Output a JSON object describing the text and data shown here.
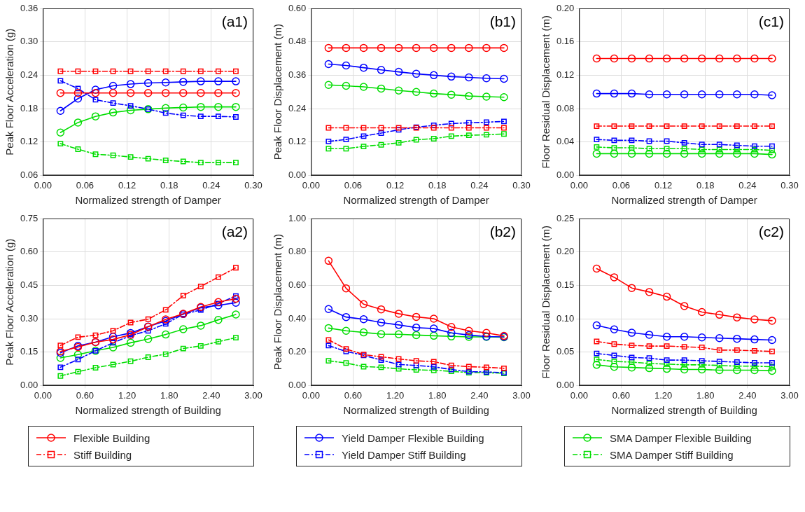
{
  "chart_data": [
    {
      "type": "line",
      "ylabel": "Peak Floor Acceleration (g)",
      "xlabel": "Normalized strength of Damper",
      "annotations": [
        "(a1)"
      ],
      "grid": true,
      "x": [
        0.025,
        0.05,
        0.075,
        0.1,
        0.125,
        0.15,
        0.175,
        0.2,
        0.225,
        0.25,
        0.275
      ],
      "xlim": [
        0,
        0.3
      ],
      "xticks": [
        {
          "value": 0,
          "label": "0.00"
        },
        {
          "value": 0.06,
          "label": "0.06"
        },
        {
          "value": 0.12,
          "label": "0.12"
        },
        {
          "value": 0.18,
          "label": "0.18"
        },
        {
          "value": 0.24,
          "label": "0.24"
        },
        {
          "value": 0.3,
          "label": "0.30"
        }
      ],
      "ylim": [
        0.06,
        0.36
      ],
      "yticks": [
        {
          "value": 0.06,
          "label": "0.06"
        },
        {
          "value": 0.12,
          "label": "0.12"
        },
        {
          "value": 0.18,
          "label": "0.18"
        },
        {
          "value": 0.24,
          "label": "0.24"
        },
        {
          "value": 0.3,
          "label": "0.30"
        },
        {
          "value": 0.36,
          "label": "0.36"
        }
      ],
      "series": [
        {
          "color": "#ff0000",
          "marker": "circle",
          "line_style": "solid",
          "values": [
            0.208,
            0.208,
            0.208,
            0.208,
            0.208,
            0.208,
            0.208,
            0.208,
            0.208,
            0.208,
            0.208
          ]
        },
        {
          "color": "#ff0000",
          "marker": "square",
          "line_style": "dashed",
          "values": [
            0.247,
            0.247,
            0.247,
            0.247,
            0.247,
            0.247,
            0.247,
            0.247,
            0.247,
            0.247,
            0.247
          ]
        },
        {
          "color": "#0000ff",
          "marker": "circle",
          "line_style": "solid",
          "values": [
            0.176,
            0.198,
            0.214,
            0.221,
            0.224,
            0.226,
            0.227,
            0.228,
            0.229,
            0.229,
            0.229
          ]
        },
        {
          "color": "#0000ff",
          "marker": "square",
          "line_style": "dashed",
          "values": [
            0.23,
            0.216,
            0.196,
            0.19,
            0.185,
            0.179,
            0.172,
            0.168,
            0.166,
            0.166,
            0.165
          ]
        },
        {
          "color": "#00dd00",
          "marker": "circle",
          "line_style": "solid",
          "values": [
            0.137,
            0.155,
            0.166,
            0.173,
            0.177,
            0.179,
            0.181,
            0.182,
            0.183,
            0.183,
            0.183
          ]
        },
        {
          "color": "#00dd00",
          "marker": "square",
          "line_style": "dashed",
          "values": [
            0.117,
            0.107,
            0.098,
            0.096,
            0.093,
            0.09,
            0.087,
            0.085,
            0.083,
            0.083,
            0.083
          ]
        }
      ]
    },
    {
      "type": "line",
      "ylabel": "Peak Floor Displacement (m)",
      "xlabel": "Normalized strength of Damper",
      "annotations": [
        "(b1)"
      ],
      "grid": true,
      "x": [
        0.025,
        0.05,
        0.075,
        0.1,
        0.125,
        0.15,
        0.175,
        0.2,
        0.225,
        0.25,
        0.275
      ],
      "xlim": [
        0,
        0.3
      ],
      "xticks": [
        {
          "value": 0,
          "label": "0.00"
        },
        {
          "value": 0.06,
          "label": "0.06"
        },
        {
          "value": 0.12,
          "label": "0.12"
        },
        {
          "value": 0.18,
          "label": "0.18"
        },
        {
          "value": 0.24,
          "label": "0.24"
        },
        {
          "value": 0.3,
          "label": "0.30"
        }
      ],
      "ylim": [
        0,
        0.6
      ],
      "yticks": [
        {
          "value": 0,
          "label": "0.00"
        },
        {
          "value": 0.12,
          "label": "0.12"
        },
        {
          "value": 0.24,
          "label": "0.24"
        },
        {
          "value": 0.36,
          "label": "0.36"
        },
        {
          "value": 0.48,
          "label": "0.48"
        },
        {
          "value": 0.6,
          "label": "0.60"
        }
      ],
      "series": [
        {
          "color": "#ff0000",
          "marker": "circle",
          "line_style": "solid",
          "values": [
            0.458,
            0.458,
            0.458,
            0.458,
            0.458,
            0.458,
            0.458,
            0.458,
            0.458,
            0.458,
            0.458
          ]
        },
        {
          "color": "#ff0000",
          "marker": "square",
          "line_style": "dashed",
          "values": [
            0.171,
            0.171,
            0.171,
            0.171,
            0.171,
            0.171,
            0.171,
            0.171,
            0.171,
            0.171,
            0.171
          ]
        },
        {
          "color": "#0000ff",
          "marker": "circle",
          "line_style": "solid",
          "values": [
            0.4,
            0.395,
            0.387,
            0.379,
            0.372,
            0.365,
            0.36,
            0.355,
            0.352,
            0.349,
            0.347
          ]
        },
        {
          "color": "#0000ff",
          "marker": "square",
          "line_style": "dashed",
          "values": [
            0.122,
            0.129,
            0.141,
            0.152,
            0.164,
            0.173,
            0.18,
            0.186,
            0.189,
            0.191,
            0.194
          ]
        },
        {
          "color": "#00dd00",
          "marker": "circle",
          "line_style": "solid",
          "values": [
            0.325,
            0.322,
            0.318,
            0.312,
            0.305,
            0.3,
            0.294,
            0.29,
            0.285,
            0.283,
            0.281
          ]
        },
        {
          "color": "#00dd00",
          "marker": "square",
          "line_style": "dashed",
          "values": [
            0.096,
            0.096,
            0.104,
            0.11,
            0.117,
            0.128,
            0.132,
            0.141,
            0.144,
            0.146,
            0.149
          ]
        }
      ]
    },
    {
      "type": "line",
      "ylabel": "Floor Residual Displacement (m)",
      "xlabel": "Normalized strength of Damper",
      "annotations": [
        "(c1)"
      ],
      "grid": true,
      "x": [
        0.025,
        0.05,
        0.075,
        0.1,
        0.125,
        0.15,
        0.175,
        0.2,
        0.225,
        0.25,
        0.275
      ],
      "xlim": [
        0,
        0.3
      ],
      "xticks": [
        {
          "value": 0,
          "label": "0.00"
        },
        {
          "value": 0.06,
          "label": "0.06"
        },
        {
          "value": 0.12,
          "label": "0.12"
        },
        {
          "value": 0.18,
          "label": "0.18"
        },
        {
          "value": 0.24,
          "label": "0.24"
        },
        {
          "value": 0.3,
          "label": "0.30"
        }
      ],
      "ylim": [
        0,
        0.2
      ],
      "yticks": [
        {
          "value": 0,
          "label": "0.00"
        },
        {
          "value": 0.04,
          "label": "0.04"
        },
        {
          "value": 0.08,
          "label": "0.08"
        },
        {
          "value": 0.12,
          "label": "0.12"
        },
        {
          "value": 0.16,
          "label": "0.16"
        },
        {
          "value": 0.2,
          "label": "0.20"
        }
      ],
      "series": [
        {
          "color": "#ff0000",
          "marker": "circle",
          "line_style": "solid",
          "values": [
            0.14,
            0.14,
            0.14,
            0.14,
            0.14,
            0.14,
            0.14,
            0.14,
            0.14,
            0.14,
            0.14
          ]
        },
        {
          "color": "#ff0000",
          "marker": "square",
          "line_style": "dashed",
          "values": [
            0.059,
            0.059,
            0.059,
            0.059,
            0.059,
            0.059,
            0.059,
            0.059,
            0.059,
            0.059,
            0.059
          ]
        },
        {
          "color": "#0000ff",
          "marker": "circle",
          "line_style": "solid",
          "values": [
            0.098,
            0.098,
            0.098,
            0.097,
            0.097,
            0.097,
            0.097,
            0.097,
            0.097,
            0.097,
            0.096
          ]
        },
        {
          "color": "#0000ff",
          "marker": "square",
          "line_style": "dashed",
          "values": [
            0.043,
            0.042,
            0.042,
            0.041,
            0.041,
            0.039,
            0.037,
            0.037,
            0.036,
            0.035,
            0.035
          ]
        },
        {
          "color": "#00dd00",
          "marker": "circle",
          "line_style": "solid",
          "values": [
            0.026,
            0.026,
            0.026,
            0.026,
            0.026,
            0.026,
            0.026,
            0.026,
            0.026,
            0.026,
            0.025
          ]
        },
        {
          "color": "#00dd00",
          "marker": "square",
          "line_style": "dashed",
          "values": [
            0.034,
            0.033,
            0.033,
            0.032,
            0.032,
            0.032,
            0.031,
            0.031,
            0.031,
            0.031,
            0.03
          ]
        }
      ]
    },
    {
      "type": "line",
      "ylabel": "Peak Floor Acceleration (g)",
      "xlabel": "Normalized strength of Building",
      "annotations": [
        "(a2)"
      ],
      "grid": true,
      "legend": "bottom",
      "x": [
        0.25,
        0.5,
        0.75,
        1.0,
        1.25,
        1.5,
        1.75,
        2.0,
        2.25,
        2.5,
        2.75
      ],
      "xlim": [
        0,
        3
      ],
      "xticks": [
        {
          "value": 0,
          "label": "0.00"
        },
        {
          "value": 0.6,
          "label": "0.60"
        },
        {
          "value": 1.2,
          "label": "1.20"
        },
        {
          "value": 1.8,
          "label": "1.80"
        },
        {
          "value": 2.4,
          "label": "2.40"
        },
        {
          "value": 3,
          "label": "3.00"
        }
      ],
      "ylim": [
        0,
        0.75
      ],
      "yticks": [
        {
          "value": 0,
          "label": "0.00"
        },
        {
          "value": 0.15,
          "label": "0.15"
        },
        {
          "value": 0.3,
          "label": "0.30"
        },
        {
          "value": 0.45,
          "label": "0.45"
        },
        {
          "value": 0.6,
          "label": "0.60"
        },
        {
          "value": 0.75,
          "label": "0.75"
        }
      ],
      "series": [
        {
          "name": "Flexible Building",
          "color": "#ff0000",
          "marker": "circle",
          "line_style": "solid",
          "values": [
            0.153,
            0.173,
            0.195,
            0.207,
            0.228,
            0.264,
            0.297,
            0.322,
            0.353,
            0.375,
            0.39
          ]
        },
        {
          "name": "Stiff Building",
          "color": "#ff0000",
          "marker": "square",
          "line_style": "dashed",
          "values": [
            0.18,
            0.217,
            0.226,
            0.246,
            0.283,
            0.298,
            0.34,
            0.404,
            0.445,
            0.487,
            0.529
          ]
        },
        {
          "name": "Yield Damper Flexible Building",
          "color": "#0000ff",
          "marker": "circle",
          "line_style": "solid",
          "values": [
            0.147,
            0.178,
            0.195,
            0.219,
            0.236,
            0.265,
            0.29,
            0.321,
            0.35,
            0.36,
            0.372
          ]
        },
        {
          "name": "Yield Damper Stiff Building",
          "color": "#0000ff",
          "marker": "square",
          "line_style": "dashed",
          "values": [
            0.082,
            0.117,
            0.156,
            0.192,
            0.224,
            0.246,
            0.277,
            0.32,
            0.339,
            0.368,
            0.402
          ]
        },
        {
          "name": "SMA Damper Flexible Building",
          "color": "#00dd00",
          "marker": "circle",
          "line_style": "solid",
          "values": [
            0.124,
            0.139,
            0.156,
            0.171,
            0.192,
            0.209,
            0.229,
            0.253,
            0.269,
            0.295,
            0.319
          ]
        },
        {
          "name": "SMA Damper Stiff Building",
          "color": "#00dd00",
          "marker": "square",
          "line_style": "dashed",
          "values": [
            0.043,
            0.062,
            0.08,
            0.094,
            0.109,
            0.127,
            0.141,
            0.166,
            0.178,
            0.197,
            0.215
          ]
        }
      ]
    },
    {
      "type": "line",
      "ylabel": "Peak Floor Displacement (m)",
      "xlabel": "Normalized strength of Building",
      "annotations": [
        "(b2)"
      ],
      "grid": true,
      "x": [
        0.25,
        0.5,
        0.75,
        1.0,
        1.25,
        1.5,
        1.75,
        2.0,
        2.25,
        2.5,
        2.75
      ],
      "xlim": [
        0,
        3
      ],
      "xticks": [
        {
          "value": 0,
          "label": "0.00"
        },
        {
          "value": 0.6,
          "label": "0.60"
        },
        {
          "value": 1.2,
          "label": "1.20"
        },
        {
          "value": 1.8,
          "label": "1.80"
        },
        {
          "value": 2.4,
          "label": "2.40"
        },
        {
          "value": 3,
          "label": "3.00"
        }
      ],
      "ylim": [
        0,
        1
      ],
      "yticks": [
        {
          "value": 0,
          "label": "0.00"
        },
        {
          "value": 0.2,
          "label": "0.20"
        },
        {
          "value": 0.4,
          "label": "0.40"
        },
        {
          "value": 0.6,
          "label": "0.60"
        },
        {
          "value": 0.8,
          "label": "0.80"
        },
        {
          "value": 1,
          "label": "1.00"
        }
      ],
      "series": [
        {
          "color": "#ff0000",
          "marker": "circle",
          "line_style": "solid",
          "values": [
            0.747,
            0.582,
            0.487,
            0.456,
            0.43,
            0.411,
            0.4,
            0.351,
            0.328,
            0.315,
            0.297
          ]
        },
        {
          "color": "#ff0000",
          "marker": "square",
          "line_style": "dashed",
          "values": [
            0.273,
            0.219,
            0.185,
            0.172,
            0.159,
            0.148,
            0.143,
            0.12,
            0.113,
            0.109,
            0.103
          ]
        },
        {
          "color": "#0000ff",
          "marker": "circle",
          "line_style": "solid",
          "values": [
            0.458,
            0.41,
            0.397,
            0.377,
            0.363,
            0.347,
            0.341,
            0.315,
            0.302,
            0.293,
            0.291
          ]
        },
        {
          "color": "#0000ff",
          "marker": "square",
          "line_style": "dashed",
          "values": [
            0.239,
            0.204,
            0.181,
            0.152,
            0.126,
            0.12,
            0.112,
            0.096,
            0.083,
            0.081,
            0.077
          ]
        },
        {
          "color": "#00dd00",
          "marker": "circle",
          "line_style": "solid",
          "values": [
            0.344,
            0.328,
            0.318,
            0.308,
            0.307,
            0.302,
            0.298,
            0.294,
            0.291,
            0.291,
            0.289
          ]
        },
        {
          "color": "#00dd00",
          "marker": "square",
          "line_style": "dashed",
          "values": [
            0.148,
            0.135,
            0.113,
            0.109,
            0.1,
            0.094,
            0.091,
            0.085,
            0.077,
            0.077,
            0.073
          ]
        }
      ]
    },
    {
      "type": "line",
      "ylabel": "Floor Residual Displacement (m)",
      "xlabel": "Normalized strength of Building",
      "annotations": [
        "(c2)"
      ],
      "grid": true,
      "x": [
        0.25,
        0.5,
        0.75,
        1.0,
        1.25,
        1.5,
        1.75,
        2.0,
        2.25,
        2.5,
        2.75
      ],
      "xlim": [
        0,
        3
      ],
      "xticks": [
        {
          "value": 0,
          "label": "0.00"
        },
        {
          "value": 0.6,
          "label": "0.60"
        },
        {
          "value": 1.2,
          "label": "1.20"
        },
        {
          "value": 1.8,
          "label": "1.80"
        },
        {
          "value": 2.4,
          "label": "2.40"
        },
        {
          "value": 3,
          "label": "3.00"
        }
      ],
      "ylim": [
        0,
        0.25
      ],
      "yticks": [
        {
          "value": 0,
          "label": "0.00"
        },
        {
          "value": 0.05,
          "label": "0.05"
        },
        {
          "value": 0.1,
          "label": "0.10"
        },
        {
          "value": 0.15,
          "label": "0.15"
        },
        {
          "value": 0.2,
          "label": "0.20"
        },
        {
          "value": 0.25,
          "label": "0.25"
        }
      ],
      "series": [
        {
          "color": "#ff0000",
          "marker": "circle",
          "line_style": "solid",
          "values": [
            0.175,
            0.162,
            0.146,
            0.14,
            0.133,
            0.119,
            0.11,
            0.106,
            0.102,
            0.099,
            0.097
          ]
        },
        {
          "color": "#ff0000",
          "marker": "square",
          "line_style": "dashed",
          "values": [
            0.066,
            0.062,
            0.06,
            0.059,
            0.059,
            0.058,
            0.057,
            0.053,
            0.053,
            0.052,
            0.051
          ]
        },
        {
          "color": "#0000ff",
          "marker": "circle",
          "line_style": "solid",
          "values": [
            0.09,
            0.084,
            0.079,
            0.076,
            0.073,
            0.073,
            0.072,
            0.071,
            0.07,
            0.069,
            0.068
          ]
        },
        {
          "color": "#0000ff",
          "marker": "square",
          "line_style": "dashed",
          "values": [
            0.048,
            0.045,
            0.042,
            0.041,
            0.038,
            0.038,
            0.037,
            0.036,
            0.035,
            0.034,
            0.034
          ]
        },
        {
          "color": "#00dd00",
          "marker": "circle",
          "line_style": "solid",
          "values": [
            0.031,
            0.028,
            0.027,
            0.026,
            0.025,
            0.024,
            0.024,
            0.023,
            0.023,
            0.023,
            0.022
          ]
        },
        {
          "color": "#00dd00",
          "marker": "square",
          "line_style": "dashed",
          "values": [
            0.039,
            0.036,
            0.035,
            0.033,
            0.032,
            0.031,
            0.031,
            0.03,
            0.029,
            0.029,
            0.028
          ]
        }
      ]
    }
  ]
}
